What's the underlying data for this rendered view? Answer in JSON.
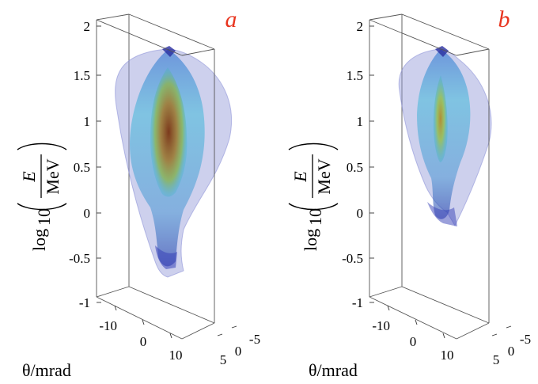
{
  "chart_data": [
    {
      "type": "volume-3d",
      "panel": "a",
      "ylabel": "log₁₀(E / MeV)",
      "xlabel": "θ/mrad",
      "y_ticks": [
        "2",
        "1.5",
        "1",
        "0.5",
        "0",
        "-0.5",
        "-1"
      ],
      "x_ticks": [
        "-10",
        "0",
        "10"
      ],
      "z_ticks": [
        "5",
        "0",
        "-5"
      ],
      "ylim": [
        -1,
        2
      ],
      "xlim": [
        -15,
        15
      ],
      "zlim": [
        -5,
        5
      ],
      "colors": {
        "outer": "#8f95d8",
        "mid": "#38b3dc",
        "inner": "#d4a92a",
        "core": "#8a3a14"
      }
    },
    {
      "type": "volume-3d",
      "panel": "b",
      "ylabel": "log₁₀(E / MeV)",
      "xlabel": "θ/mrad",
      "y_ticks": [
        "2",
        "1.5",
        "1",
        "0.5",
        "0",
        "-0.5",
        "-1"
      ],
      "x_ticks": [
        "-10",
        "0",
        "10"
      ],
      "z_ticks": [
        "5",
        "0",
        "-5"
      ],
      "ylim": [
        -1,
        2
      ],
      "xlim": [
        -15,
        15
      ],
      "zlim": [
        -5,
        5
      ],
      "colors": {
        "outer": "#8f95d8",
        "mid": "#38b3dc",
        "inner": "#d4a92a",
        "core": "#8a3a14"
      }
    }
  ],
  "ylabel_parts": {
    "log": "log",
    "sub": "10",
    "num": "E",
    "den": "MeV"
  }
}
